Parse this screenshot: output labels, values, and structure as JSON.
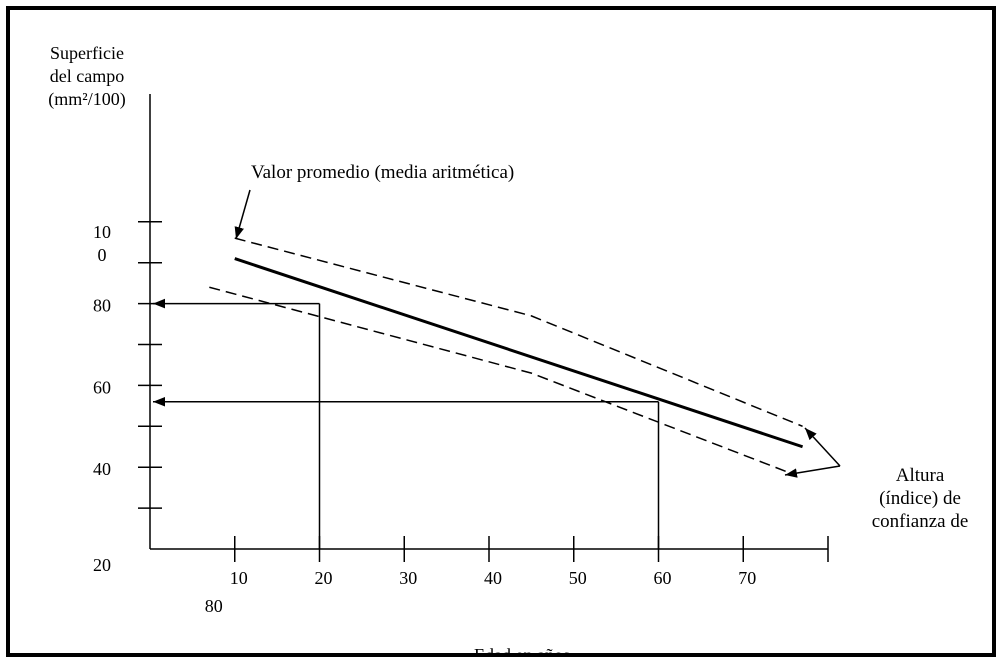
{
  "chart_data": {
    "type": "line",
    "ylabel_lines": [
      "Superficie",
      "del campo",
      "(mm²/100)"
    ],
    "xlabel": "Edad en años",
    "x_ticks": [
      "10",
      "20",
      "30",
      "40",
      "50",
      "60",
      "70"
    ],
    "x_extra_label": "80",
    "y_ticks": [
      {
        "value": 20,
        "label": "20"
      },
      {
        "value": 40,
        "label": "40"
      },
      {
        "value": 60,
        "label": "60"
      },
      {
        "value": 80,
        "label": "80"
      },
      {
        "value": 100,
        "label_lines": [
          "10",
          "0"
        ]
      }
    ],
    "xlim": [
      0,
      80
    ],
    "ylim": [
      20,
      100
    ],
    "series": [
      {
        "style": "solid",
        "x": [
          10,
          77
        ],
        "y": [
          91,
          45
        ]
      },
      {
        "style": "dashed",
        "x": [
          10,
          45,
          77
        ],
        "y": [
          96,
          77,
          50
        ]
      },
      {
        "style": "dashed",
        "x": [
          7,
          45,
          75
        ],
        "y": [
          84,
          63,
          39
        ]
      }
    ],
    "readings": [
      {
        "x": 20,
        "y": 80
      },
      {
        "x": 60,
        "y": 56
      }
    ],
    "annotations": {
      "mean": "Valor promedio (media aritmética)",
      "confidence_lines": [
        "Altura",
        "(índice) de",
        "confianza de"
      ]
    }
  }
}
